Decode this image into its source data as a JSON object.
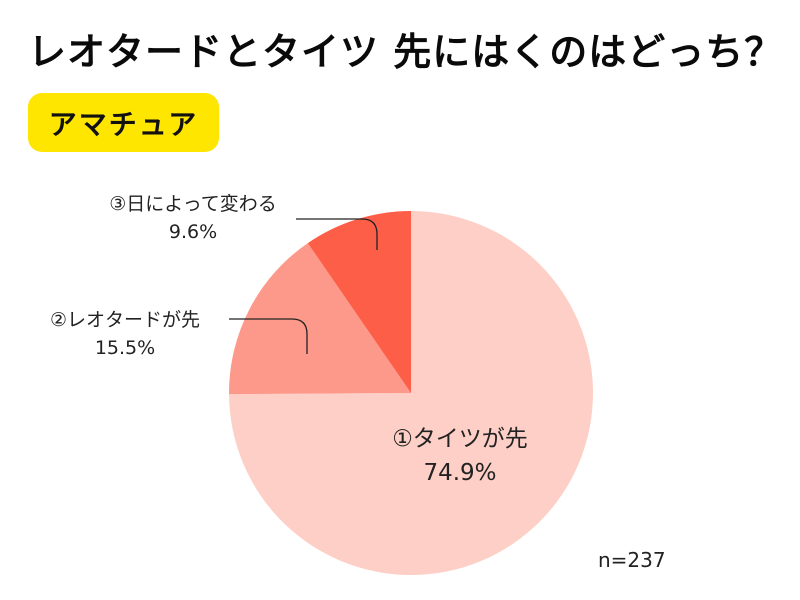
{
  "title": "レオタードとタイツ 先にはくのはどっち？",
  "badge": "アマチュア",
  "colors": {
    "slice1": "#fdcfc6",
    "slice2": "#fd998a",
    "slice3": "#fd5e48",
    "badge": "#ffe600",
    "leader_line": "#222222"
  },
  "labels": {
    "slice1": {
      "name": "①タイツが先",
      "pct": "74.9%"
    },
    "slice2": {
      "name": "②レオタードが先",
      "pct": "15.5%"
    },
    "slice3": {
      "name": "③日によって変わる",
      "pct": "9.6%"
    }
  },
  "sample_size": "n=237",
  "chart_data": {
    "type": "pie",
    "title": "レオタードとタイツ 先にはくのはどっち？",
    "subtitle": "アマチュア",
    "categories": [
      "①タイツが先",
      "②レオタードが先",
      "③日によって変わる"
    ],
    "values": [
      74.9,
      15.5,
      9.6
    ],
    "unit": "%",
    "colors": [
      "#fdcfc6",
      "#fd998a",
      "#fd5e48"
    ],
    "start_angle": "12 o'clock",
    "direction": "clockwise",
    "annotations": [
      "n=237"
    ],
    "legend": "none (inline labels with leader lines)"
  }
}
